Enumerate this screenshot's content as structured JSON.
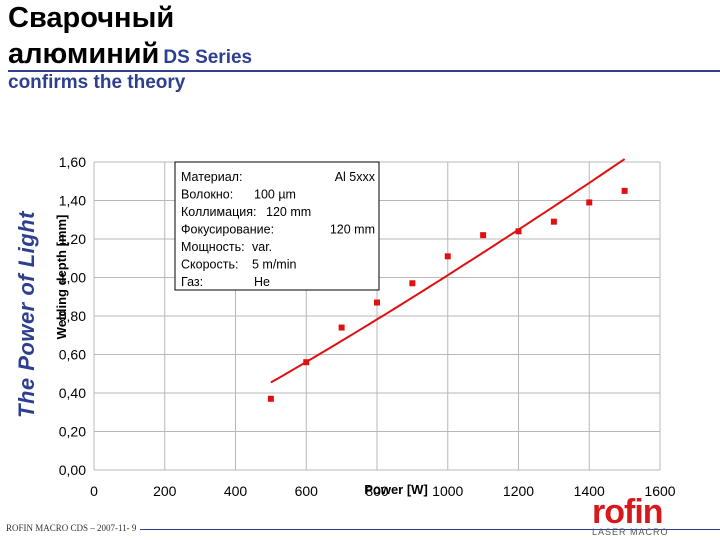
{
  "header": {
    "title_line1": "Сварочный",
    "title_line2": "алюминий",
    "series_label": "DS Series",
    "subtitle": "confirms the theory"
  },
  "side_text": "The Power of Light",
  "footer": {
    "left": "ROFIN MACRO CDS – 2007-11- 9"
  },
  "logo": {
    "word": "rofin",
    "sub": "LASER MACRO"
  },
  "colors": {
    "accent": "#2e3f8f",
    "data": "#e01010",
    "logo": "#d7191c"
  },
  "chart_data": {
    "type": "scatter",
    "xlabel": "Power [W]",
    "ylabel": "Welding depth [mm]",
    "xlim": [
      0,
      1600
    ],
    "ylim": [
      0,
      1.6
    ],
    "x_ticks": [
      "0",
      "200",
      "400",
      "600",
      "800",
      "1000",
      "1200",
      "1400",
      "1600"
    ],
    "y_ticks": [
      "0,00",
      "0,20",
      "0,40",
      "0,60",
      "0,80",
      "1,00",
      "1,20",
      "1,40",
      "1,60"
    ],
    "grid": true,
    "series": [
      {
        "points": [
          [
            500,
            0.37
          ],
          [
            600,
            0.56
          ],
          [
            700,
            0.74
          ],
          [
            800,
            0.87
          ],
          [
            900,
            0.97
          ],
          [
            1000,
            1.11
          ],
          [
            1100,
            1.22
          ],
          [
            1200,
            1.24
          ],
          [
            1300,
            1.29
          ],
          [
            1400,
            1.39
          ],
          [
            1500,
            1.45
          ]
        ]
      }
    ],
    "trendline": {
      "type": "power",
      "x_from": 500,
      "x_to": 1500
    },
    "annotation": {
      "rows": [
        {
          "label": "Материал:",
          "value": "Al 5xxx"
        },
        {
          "label": "Волокно:",
          "value": "100 µm"
        },
        {
          "label": "Коллимация:",
          "value": "120 mm"
        },
        {
          "label": "Фокусирование:",
          "value": "120 mm"
        },
        {
          "label": "Мощность:",
          "value": "var."
        },
        {
          "label": "Скорость:",
          "value": "5 m/min"
        },
        {
          "label": "Газ:",
          "value": "He"
        }
      ]
    }
  }
}
